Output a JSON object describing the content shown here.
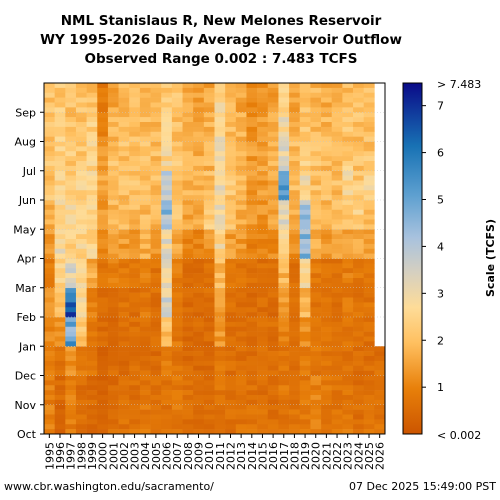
{
  "chart_data": {
    "type": "heatmap",
    "title_lines": [
      "NML Stanislaus R, New Melones Reservoir",
      "WY 1995-2026 Daily Average Reservoir Outflow",
      "Observed Range 0.002 : 7.483 TCFS"
    ],
    "x_categories": [
      "1995",
      "1996",
      "1997",
      "1998",
      "1999",
      "2000",
      "2001",
      "2002",
      "2003",
      "2004",
      "2005",
      "2006",
      "2007",
      "2008",
      "2009",
      "2010",
      "2011",
      "2012",
      "2013",
      "2014",
      "2015",
      "2016",
      "2017",
      "2018",
      "2019",
      "2020",
      "2021",
      "2022",
      "2023",
      "2024",
      "2025",
      "2026"
    ],
    "y_categories": [
      "Oct",
      "Nov",
      "Dec",
      "Jan",
      "Feb",
      "Mar",
      "Apr",
      "May",
      "Jun",
      "Jul",
      "Aug",
      "Sep"
    ],
    "value_range": [
      0.002,
      7.483
    ],
    "colorbar": {
      "label": "Scale (TCFS)",
      "min_label": "< 0.002",
      "max_label": "> 7.483",
      "ticks": [
        "1",
        "2",
        "3",
        "4",
        "5",
        "6",
        "7"
      ],
      "tick_values": [
        1,
        2,
        3,
        4,
        5,
        6,
        7
      ]
    },
    "monthly_values": [
      [
        1.0,
        0.9,
        1.0,
        1.1,
        1.4,
        0.8,
        1.4,
        1.8,
        2.1,
        2.2,
        2.1,
        2.0
      ],
      [
        0.4,
        0.5,
        0.6,
        1.2,
        1.9,
        2.6,
        2.8,
        2.6,
        2.4,
        2.4,
        2.4,
        2.2
      ],
      [
        0.9,
        1.0,
        1.2,
        5.0,
        6.2,
        3.2,
        2.3,
        2.6,
        2.4,
        2.2,
        2.1,
        2.0
      ],
      [
        0.6,
        0.6,
        0.8,
        2.2,
        2.6,
        2.6,
        2.5,
        2.6,
        2.5,
        2.2,
        2.1,
        2.1
      ],
      [
        0.4,
        0.5,
        0.7,
        0.9,
        1.0,
        1.6,
        2.4,
        2.6,
        2.6,
        2.5,
        2.3,
        2.0
      ],
      [
        0.3,
        0.3,
        0.3,
        0.5,
        0.6,
        0.8,
        1.0,
        1.4,
        1.6,
        1.3,
        1.0,
        0.8
      ],
      [
        0.6,
        0.5,
        0.6,
        0.5,
        0.6,
        0.9,
        1.4,
        1.8,
        2.0,
        2.0,
        1.9,
        1.6
      ],
      [
        0.7,
        0.6,
        0.5,
        0.6,
        0.7,
        0.8,
        1.4,
        1.8,
        2.0,
        2.0,
        1.9,
        1.8
      ],
      [
        0.7,
        0.6,
        0.6,
        0.6,
        0.6,
        0.7,
        1.4,
        1.9,
        2.0,
        2.0,
        1.9,
        1.9
      ],
      [
        0.8,
        0.7,
        0.6,
        0.7,
        0.8,
        1.0,
        1.6,
        1.9,
        2.0,
        2.0,
        1.9,
        1.8
      ],
      [
        0.6,
        0.6,
        0.5,
        0.6,
        0.6,
        0.7,
        1.3,
        1.8,
        1.9,
        2.0,
        1.8,
        1.8
      ],
      [
        0.6,
        0.7,
        1.0,
        2.0,
        3.3,
        3.0,
        3.1,
        4.3,
        3.6,
        2.6,
        2.5,
        2.2
      ],
      [
        0.8,
        0.8,
        0.7,
        0.8,
        0.8,
        0.9,
        1.5,
        2.0,
        2.2,
        2.1,
        2.0,
        2.0
      ],
      [
        0.6,
        0.6,
        0.5,
        0.5,
        0.5,
        0.6,
        1.0,
        1.5,
        1.8,
        1.8,
        1.6,
        1.5
      ],
      [
        0.5,
        0.5,
        0.4,
        0.5,
        0.5,
        0.5,
        1.0,
        1.5,
        1.7,
        1.7,
        1.6,
        1.5
      ],
      [
        0.5,
        0.5,
        0.5,
        0.5,
        0.6,
        0.6,
        1.3,
        2.2,
        2.0,
        1.8,
        1.7,
        1.5
      ],
      [
        0.6,
        0.7,
        0.8,
        1.4,
        1.3,
        1.9,
        2.6,
        2.8,
        2.9,
        2.9,
        2.9,
        2.6
      ],
      [
        0.6,
        0.6,
        0.6,
        0.6,
        0.6,
        0.7,
        1.4,
        2.0,
        2.1,
        2.1,
        1.9,
        1.8
      ],
      [
        0.7,
        0.6,
        0.6,
        0.6,
        0.6,
        0.7,
        1.3,
        1.6,
        1.8,
        1.8,
        1.7,
        1.5
      ],
      [
        0.7,
        0.6,
        0.6,
        0.5,
        0.5,
        0.6,
        1.0,
        1.3,
        1.4,
        1.4,
        1.3,
        1.2
      ],
      [
        0.7,
        0.6,
        0.6,
        0.6,
        0.6,
        0.6,
        1.0,
        1.3,
        1.4,
        1.4,
        1.4,
        1.3
      ],
      [
        0.6,
        0.6,
        0.6,
        0.6,
        0.5,
        0.6,
        1.1,
        1.5,
        1.7,
        1.7,
        1.6,
        1.4
      ],
      [
        0.7,
        0.8,
        0.8,
        0.9,
        1.3,
        1.8,
        2.4,
        3.2,
        5.2,
        3.3,
        2.8,
        2.3
      ],
      [
        0.7,
        0.6,
        0.6,
        0.6,
        0.6,
        0.6,
        1.2,
        1.7,
        1.9,
        1.9,
        1.7,
        1.5
      ],
      [
        0.8,
        0.8,
        0.9,
        1.2,
        1.8,
        2.6,
        4.6,
        4.2,
        2.8,
        2.3,
        2.1,
        2.0
      ],
      [
        0.9,
        1.0,
        0.8,
        0.7,
        0.7,
        0.8,
        1.6,
        1.9,
        2.0,
        2.0,
        1.9,
        1.8
      ],
      [
        0.8,
        0.8,
        0.7,
        0.7,
        0.7,
        0.7,
        1.4,
        1.8,
        1.9,
        1.9,
        1.8,
        1.6
      ],
      [
        0.7,
        0.7,
        0.6,
        0.6,
        0.6,
        0.6,
        1.4,
        1.9,
        2.0,
        2.0,
        1.8,
        1.7
      ],
      [
        0.8,
        0.7,
        0.7,
        0.7,
        0.8,
        0.9,
        1.6,
        2.2,
        2.6,
        2.3,
        2.1,
        2.0
      ],
      [
        0.6,
        0.6,
        0.6,
        0.6,
        0.7,
        0.8,
        1.6,
        2.3,
        2.2,
        2.1,
        2.0,
        1.9
      ],
      [
        0.7,
        0.6,
        0.6,
        0.6,
        0.7,
        0.8,
        1.4,
        2.0,
        2.6,
        2.1,
        2.0,
        1.9
      ],
      [
        0.7,
        0.6,
        0.6,
        null,
        null,
        null,
        null,
        null,
        null,
        null,
        null,
        null
      ]
    ]
  },
  "footer": {
    "left": "www.cbr.washington.edu/sacramento/",
    "right": "07 Dec 2025 15:49:00 PST"
  }
}
